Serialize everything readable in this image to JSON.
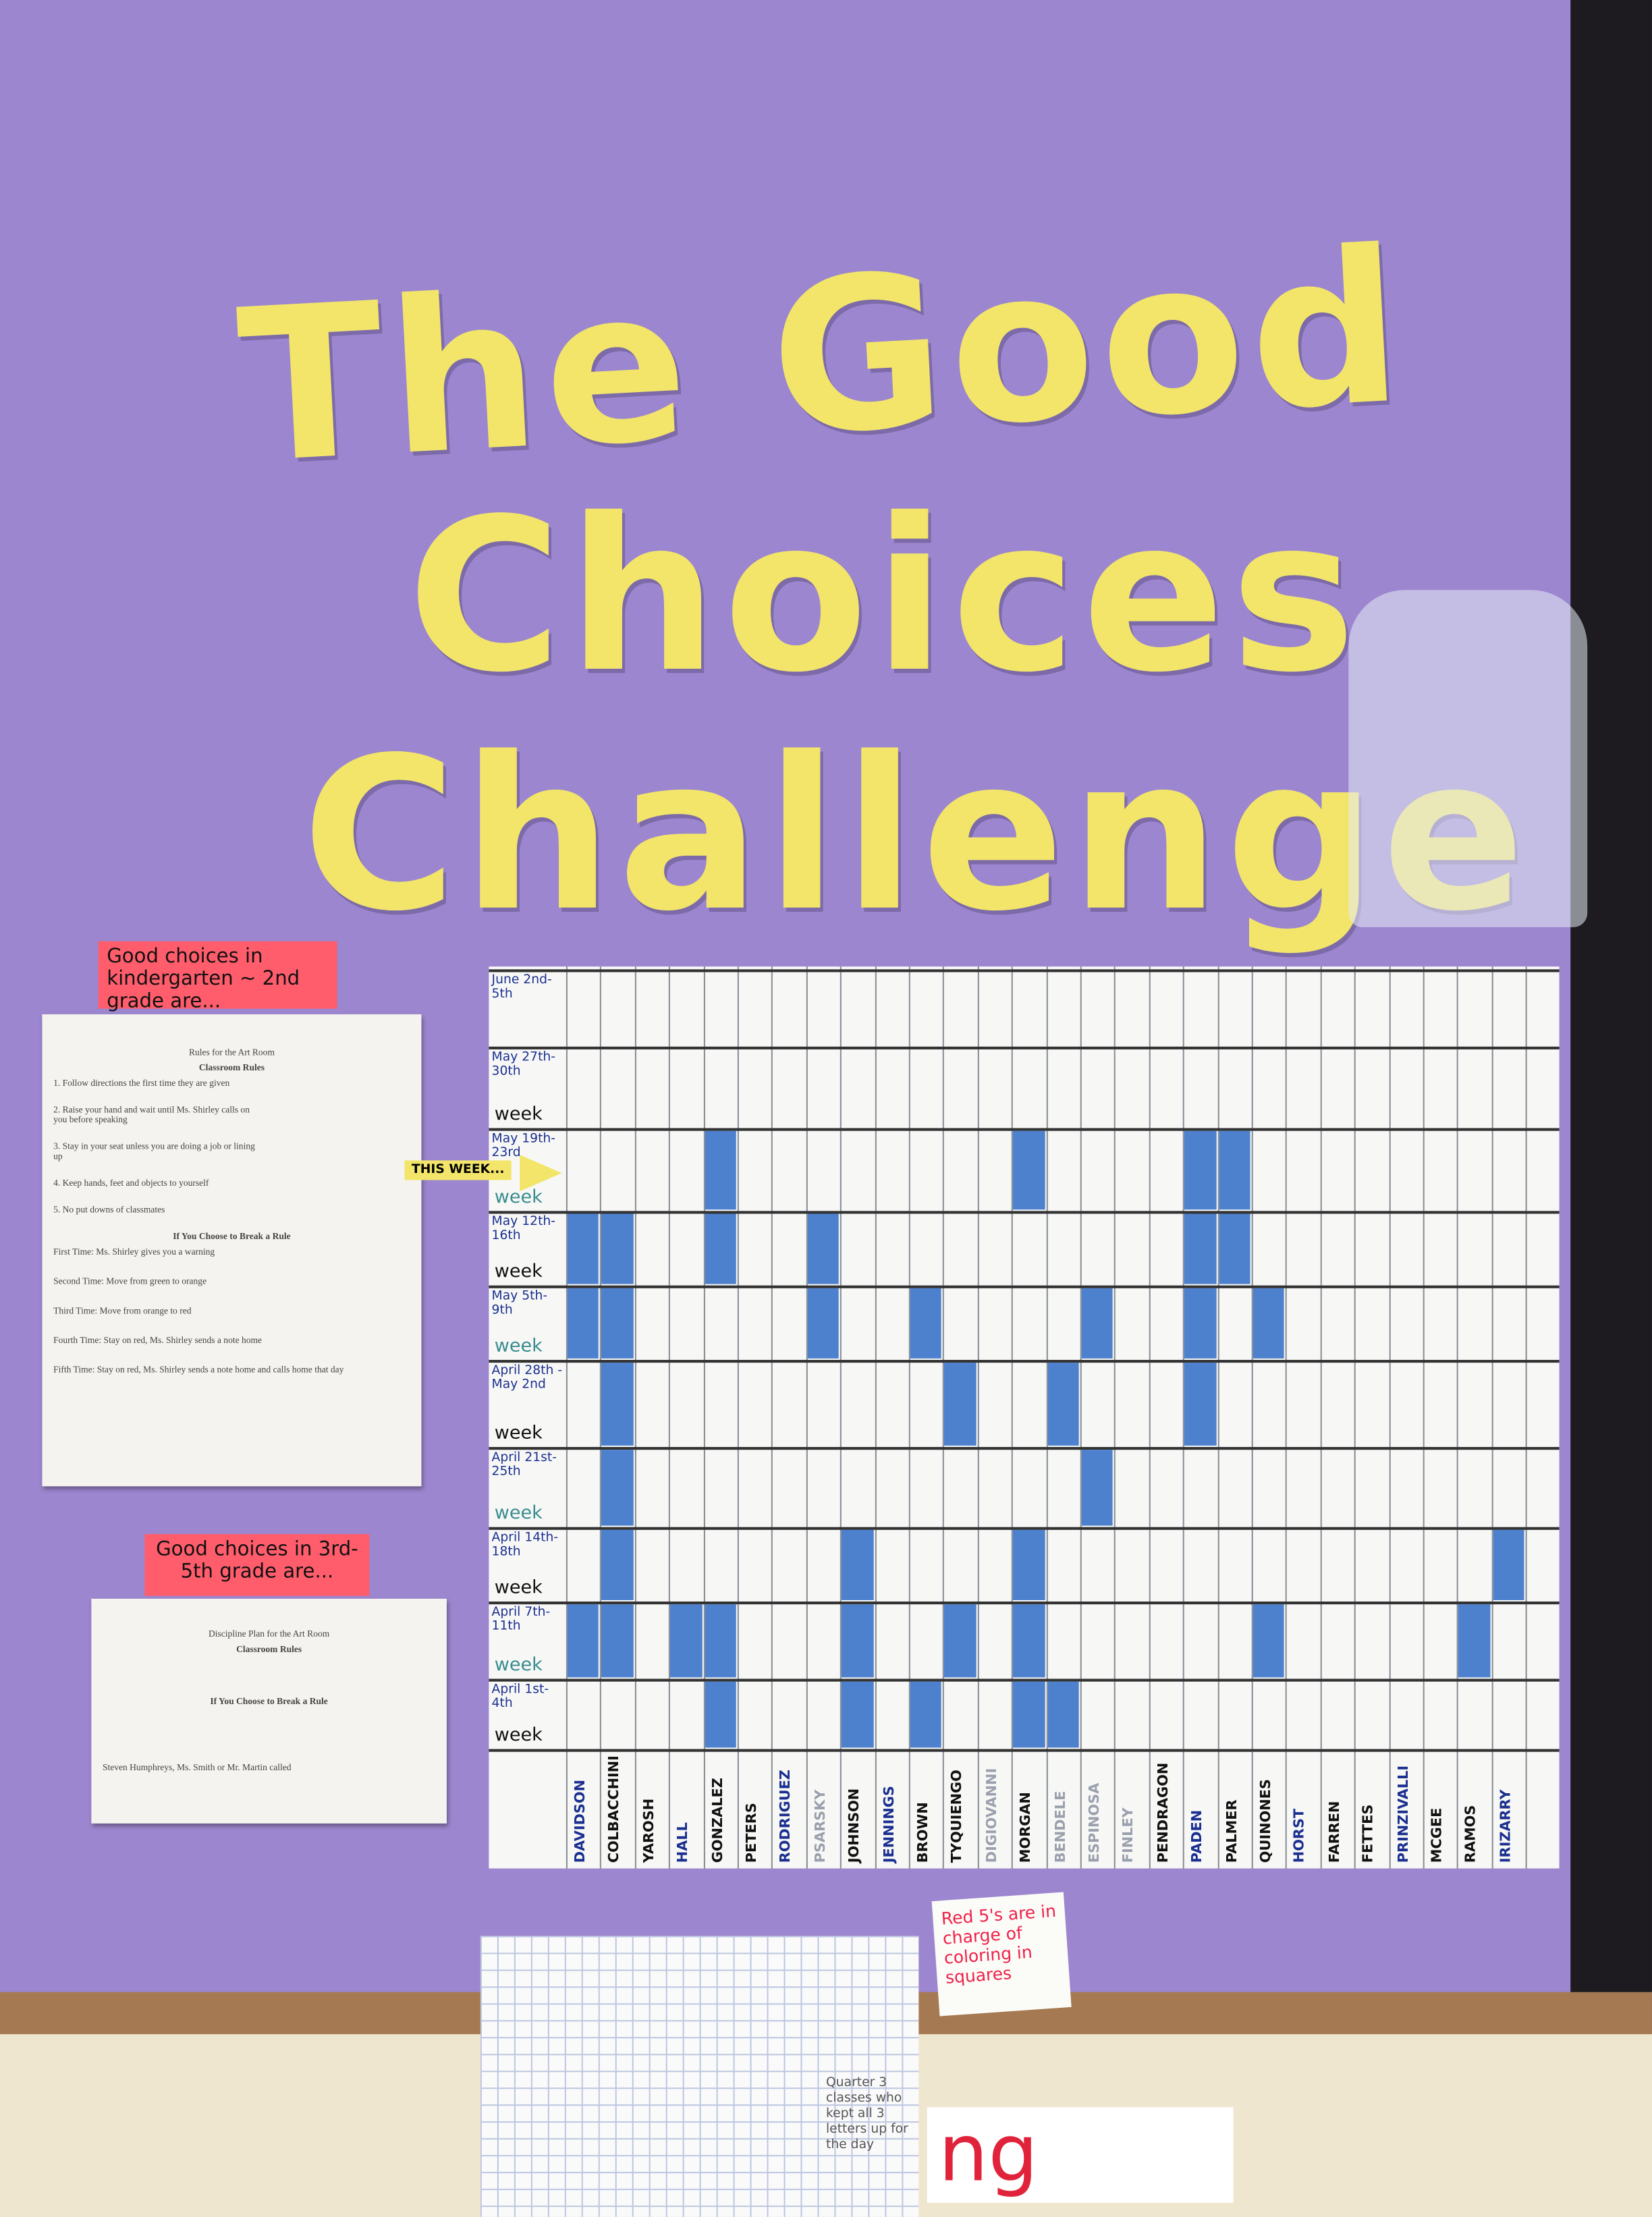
{
  "title": {
    "lines": [
      "The Good",
      "Choices",
      "Challenge"
    ]
  },
  "labels": {
    "k2": "Good choices in kindergarten ~ 2nd grade are...",
    "g35": "Good choices in 3rd- 5th grade are..."
  },
  "rules_sheet": {
    "heading": "Rules for the Art Room",
    "subheading": "Classroom Rules",
    "rules": [
      "1. Follow directions the first time they are given",
      "2. Raise your hand and wait until Ms. Shirley calls on you before speaking",
      "3. Stay in your seat unless you are doing a job or lining up",
      "4. Keep hands, feet and objects to yourself",
      "5. No put downs of classmates"
    ],
    "consequence_heading": "If You Choose to Break a Rule",
    "consequences": [
      "First Time: Ms. Shirley gives you a warning",
      "Second Time: Move from green to orange",
      "Third Time: Move from orange to red",
      "Fourth Time: Stay on red, Ms. Shirley sends a note home",
      "Fifth Time: Stay on red, Ms. Shirley sends a note home and calls home that day"
    ]
  },
  "discipline_sheet": {
    "heading": "Discipline Plan for the Art Room",
    "subheading": "Classroom Rules",
    "consequence_heading": "If You Choose to Break a Rule",
    "signature": "Steven Humphreys, Ms. Smith or Mr. Martin called"
  },
  "chart": {
    "pointer": "THIS WEEK...",
    "rows": [
      {
        "date": "June 2nd-5th"
      },
      {
        "date": "May 27th-30th",
        "label": "week"
      },
      {
        "date": "May 19th-23rd",
        "label": "week"
      },
      {
        "date": "May 12th-16th",
        "label": "week"
      },
      {
        "date": "May 5th-9th",
        "label": "week"
      },
      {
        "date": "April 28th - May 2nd",
        "label": "week"
      },
      {
        "date": "April 21st-25th",
        "label": "week"
      },
      {
        "date": "April 14th-18th",
        "label": "week"
      },
      {
        "date": "April 7th-11th",
        "label": "week"
      },
      {
        "date": "April 1st-4th",
        "label": "week"
      }
    ],
    "names": [
      "DAVIDSON",
      "COLBACCHINI",
      "YAROSH",
      "HALL",
      "GONZALEZ",
      "PETERS",
      "RODRIGUEZ",
      "PSARSKY",
      "JOHNSON",
      "JENNINGS",
      "BROWN",
      "TYQUIENGO",
      "DIGIOVANNI",
      "MORGAN",
      "BENDELE",
      "ESPINOSA",
      "FINLEY",
      "PENDRAGON",
      "PADEN",
      "PALMER",
      "QUINONES",
      "HORST",
      "FARREN",
      "FETTES",
      "PRINZIVALLI",
      "MCGEE",
      "RAMOS",
      "IRIZARRY"
    ]
  },
  "note": "Red 5's are in charge of coloring in squares",
  "bottom_sheet": {
    "note": "Quarter 3 classes who kept all 3 letters up for the day"
  },
  "banner_fragment": "ng"
}
